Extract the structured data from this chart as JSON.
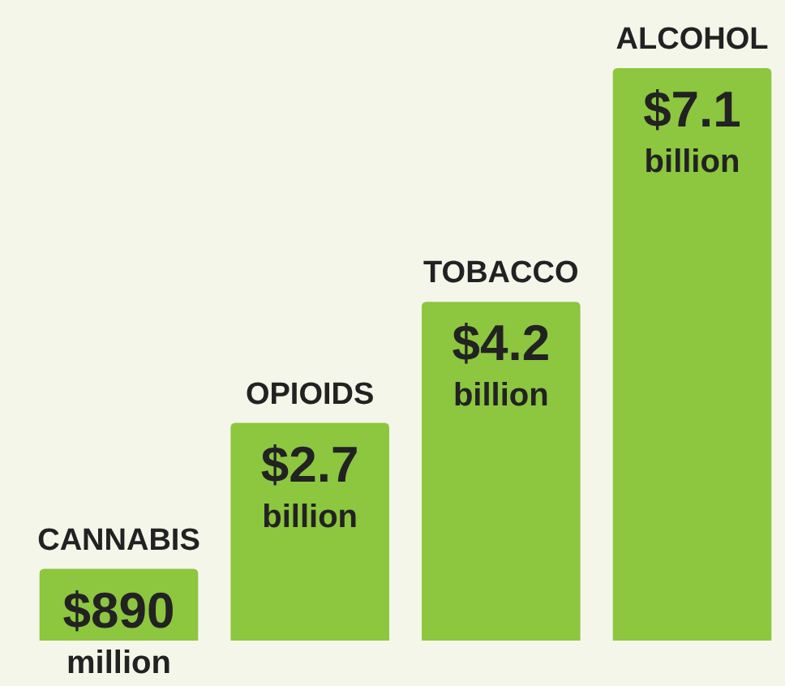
{
  "chart_data": {
    "type": "bar",
    "categories": [
      "CANNABIS",
      "OPIOIDS",
      "TOBACCO",
      "ALCOHOL"
    ],
    "values": [
      890000000,
      2700000000,
      4200000000,
      7100000000
    ],
    "value_labels": [
      "$890 million",
      "$2.7 billion",
      "$4.2 billion",
      "$7.1 billion"
    ],
    "color": "#8dc63f"
  }
}
